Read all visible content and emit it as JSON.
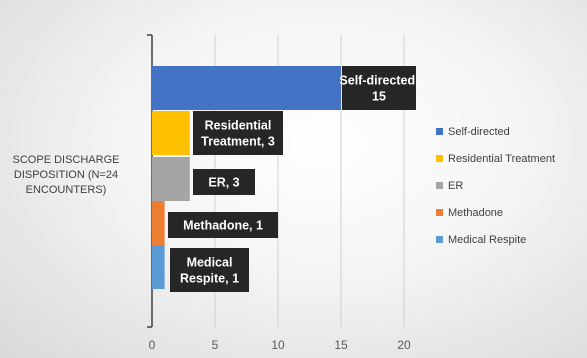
{
  "chart_data": {
    "type": "bar",
    "orientation": "horizontal",
    "category_axis_label": [
      "SCOPE DISCHARGE",
      "DISPOSITION (N=24",
      "ENCOUNTERS)"
    ],
    "xlim": [
      0,
      25
    ],
    "x_ticks": [
      0,
      5,
      10,
      15,
      20
    ],
    "grid": true,
    "legend_position": "right",
    "series": [
      {
        "name": "Self-directed",
        "value": 15,
        "color": "#4472C4",
        "label_lines": [
          "Self-directed,",
          "15"
        ]
      },
      {
        "name": "Residential Treatment",
        "value": 3,
        "color": "#FFC000",
        "label_lines": [
          "Residential",
          "Treatment, 3"
        ]
      },
      {
        "name": "ER",
        "value": 3,
        "color": "#A5A5A5",
        "label_lines": [
          "ER, 3"
        ]
      },
      {
        "name": "Methadone",
        "value": 1,
        "color": "#ED7D31",
        "label_lines": [
          "Methadone, 1"
        ]
      },
      {
        "name": "Medical Respite",
        "value": 1,
        "color": "#5B9BD5",
        "label_lines": [
          "Medical",
          "Respite, 1"
        ]
      }
    ]
  }
}
